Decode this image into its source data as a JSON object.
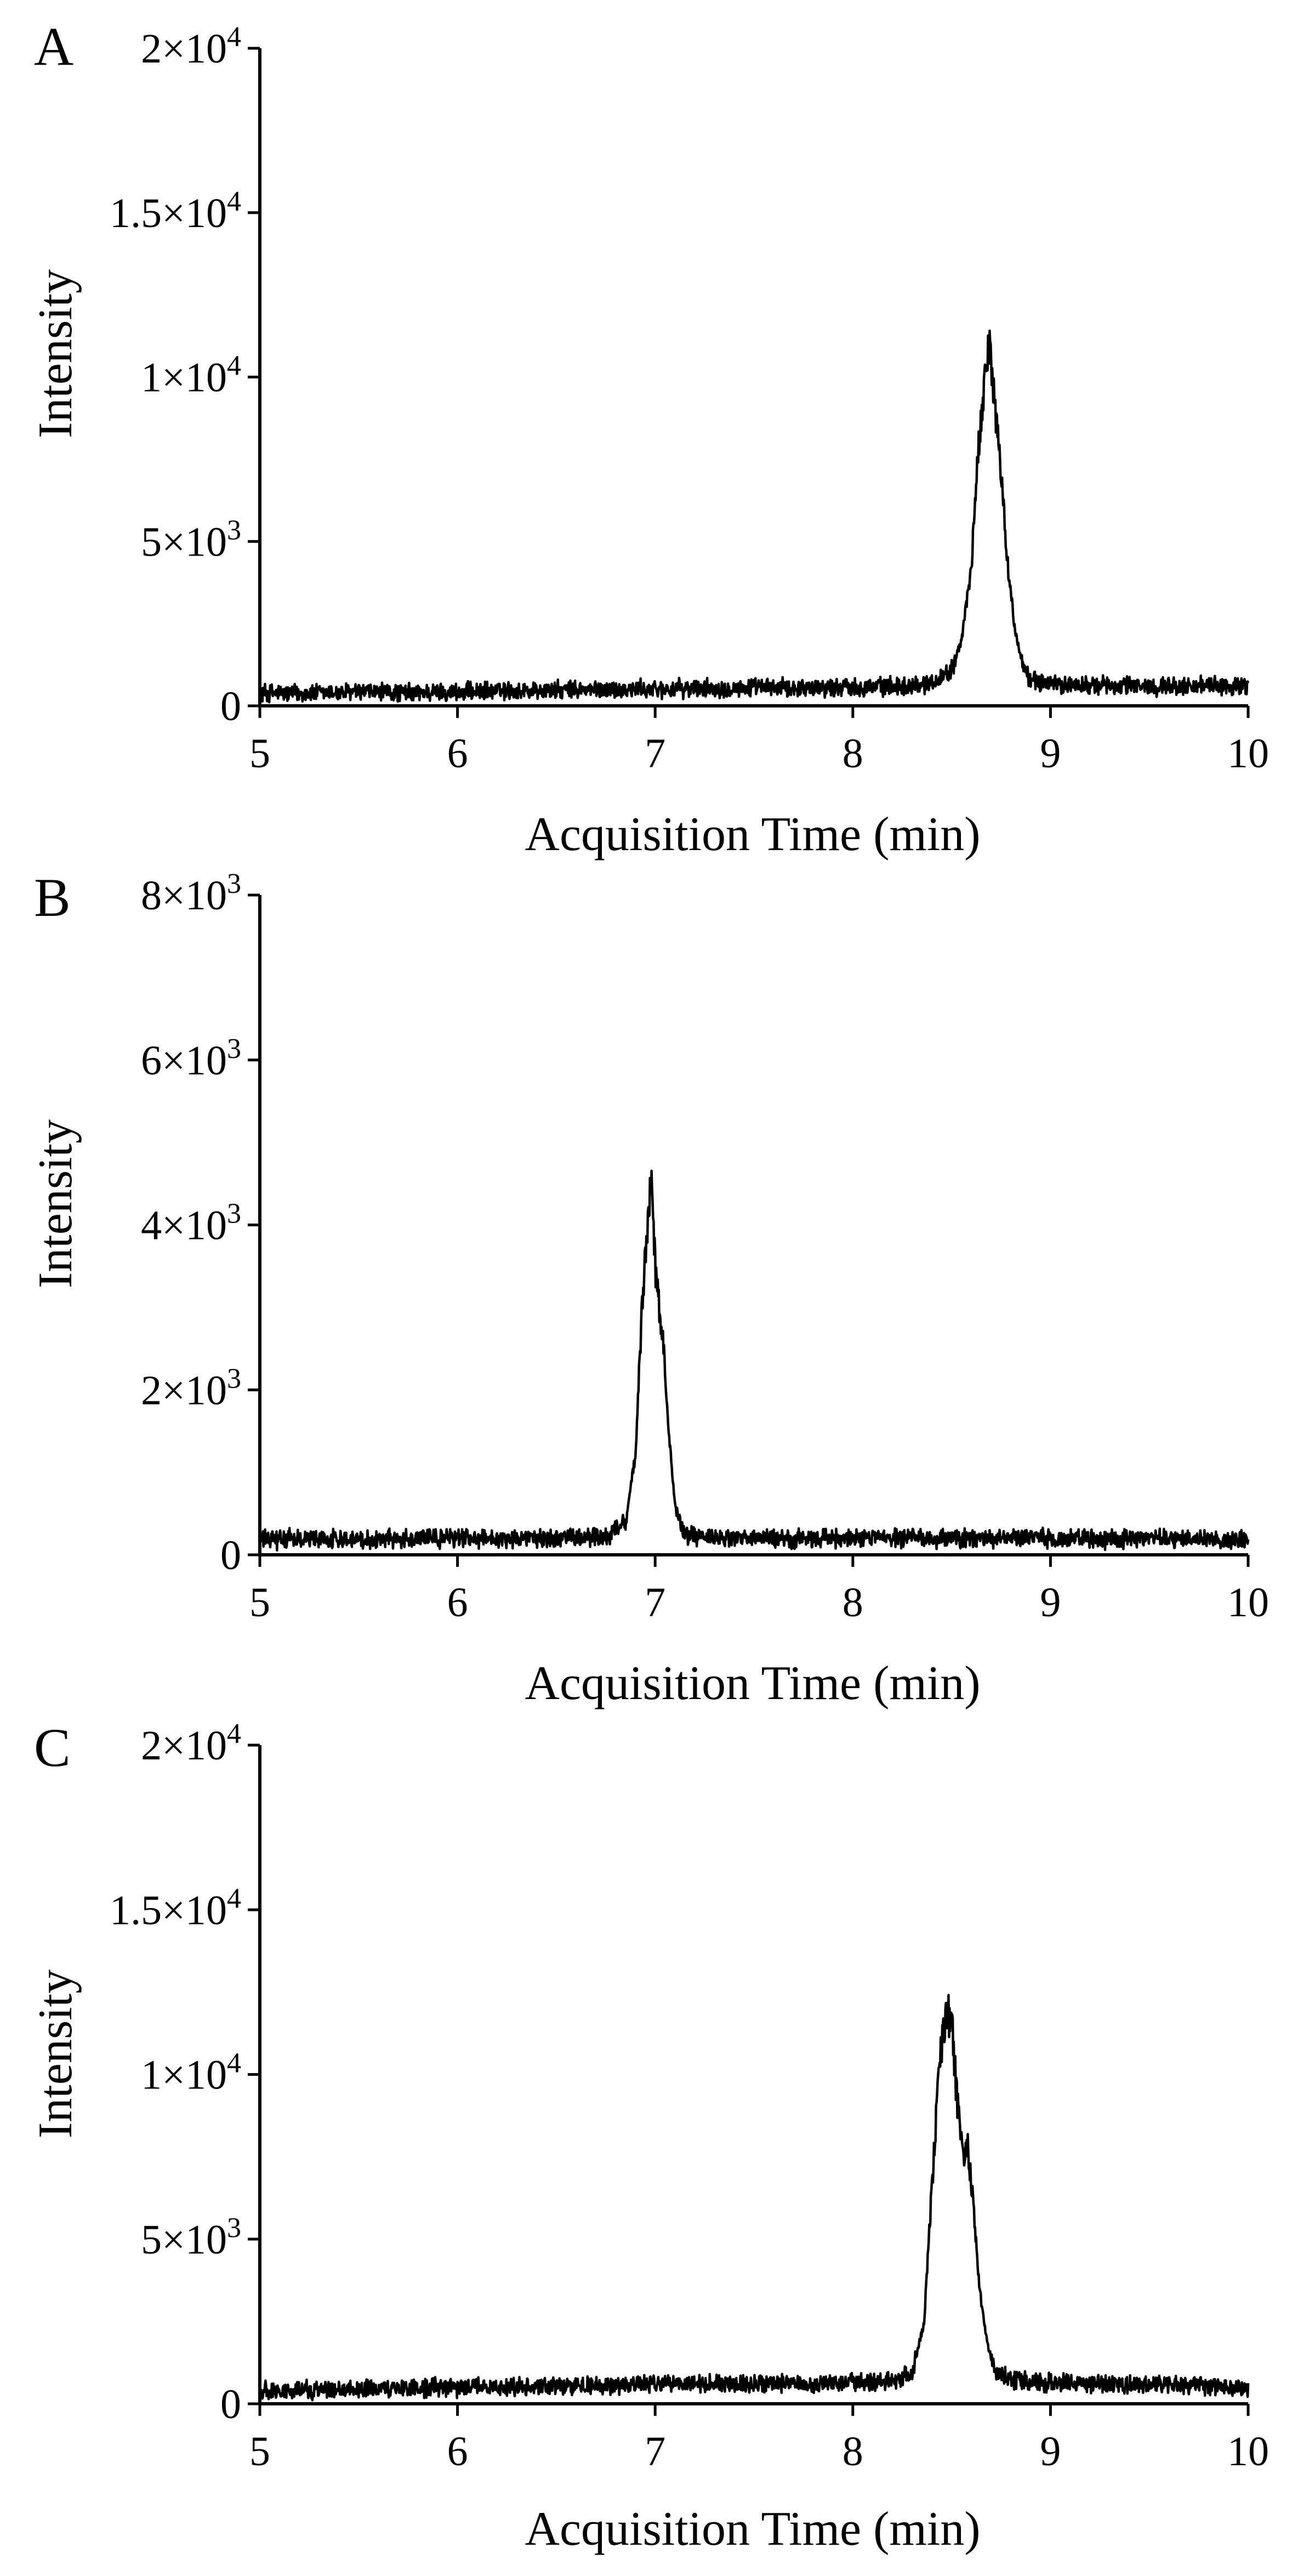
{
  "chart_data": [
    {
      "type": "line",
      "panel_label": "A",
      "xlabel": "Acquisition Time (min)",
      "ylabel": "Intensity",
      "xlim": [
        5,
        10
      ],
      "ylim": [
        0,
        20000
      ],
      "x_ticks": [
        5,
        6,
        7,
        8,
        9,
        10
      ],
      "x_tick_labels": [
        "5",
        "6",
        "7",
        "8",
        "9",
        "10"
      ],
      "y_ticks": [
        0,
        5000,
        10000,
        15000,
        20000
      ],
      "y_tick_labels": [
        {
          "mantissa": "0",
          "exponent": ""
        },
        {
          "mantissa": "5×10",
          "exponent": "3"
        },
        {
          "mantissa": "1×10",
          "exponent": "4"
        },
        {
          "mantissa": "1.5×10",
          "exponent": "4"
        },
        {
          "mantissa": "2×10",
          "exponent": "4"
        }
      ],
      "grid": false,
      "series": [
        {
          "x": [
            5.0,
            5.25,
            5.5,
            5.75,
            6.0,
            6.25,
            6.5,
            6.75,
            7.0,
            7.25,
            7.5,
            7.75,
            8.0,
            8.25,
            8.4,
            8.5,
            8.55,
            8.6,
            8.63,
            8.66,
            8.69,
            8.72,
            8.75,
            8.78,
            8.82,
            8.86,
            8.9,
            9.0,
            9.25,
            9.5,
            9.75,
            10.0
          ],
          "y": [
            400,
            380,
            420,
            400,
            420,
            450,
            470,
            490,
            510,
            530,
            550,
            560,
            580,
            600,
            700,
            1100,
            2000,
            4200,
            7500,
            9500,
            11000,
            9000,
            7200,
            4500,
            2300,
            1200,
            800,
            650,
            620,
            600,
            600,
            600
          ]
        }
      ]
    },
    {
      "type": "line",
      "panel_label": "B",
      "xlabel": "Acquisition Time (min)",
      "ylabel": "Intensity",
      "xlim": [
        5,
        10
      ],
      "ylim": [
        0,
        8000
      ],
      "x_ticks": [
        5,
        6,
        7,
        8,
        9,
        10
      ],
      "x_tick_labels": [
        "5",
        "6",
        "7",
        "8",
        "9",
        "10"
      ],
      "y_ticks": [
        0,
        2000,
        4000,
        6000,
        8000
      ],
      "y_tick_labels": [
        {
          "mantissa": "0",
          "exponent": ""
        },
        {
          "mantissa": "2×10",
          "exponent": "3"
        },
        {
          "mantissa": "4×10",
          "exponent": "3"
        },
        {
          "mantissa": "6×10",
          "exponent": "3"
        },
        {
          "mantissa": "8×10",
          "exponent": "3"
        }
      ],
      "grid": false,
      "series": [
        {
          "x": [
            5.0,
            5.25,
            5.5,
            5.75,
            6.0,
            6.25,
            6.5,
            6.75,
            6.85,
            6.9,
            6.93,
            6.96,
            6.98,
            7.0,
            7.02,
            7.04,
            7.07,
            7.1,
            7.15,
            7.25,
            7.5,
            7.75,
            8.0,
            8.25,
            8.5,
            8.75,
            9.0,
            9.25,
            9.5,
            9.75,
            10.0
          ],
          "y": [
            180,
            200,
            190,
            200,
            210,
            200,
            200,
            220,
            400,
            1200,
            2800,
            4000,
            4600,
            3500,
            3000,
            2600,
            1500,
            600,
            250,
            200,
            200,
            190,
            200,
            200,
            190,
            200,
            200,
            190,
            200,
            190,
            180
          ]
        }
      ]
    },
    {
      "type": "line",
      "panel_label": "C",
      "xlabel": "Acquisition Time (min)",
      "ylabel": "Intensity",
      "xlim": [
        5,
        10
      ],
      "ylim": [
        0,
        20000
      ],
      "x_ticks": [
        5,
        6,
        7,
        8,
        9,
        10
      ],
      "x_tick_labels": [
        "5",
        "6",
        "7",
        "8",
        "9",
        "10"
      ],
      "y_ticks": [
        0,
        5000,
        10000,
        15000,
        20000
      ],
      "y_tick_labels": [
        {
          "mantissa": "0",
          "exponent": ""
        },
        {
          "mantissa": "5×10",
          "exponent": "3"
        },
        {
          "mantissa": "1×10",
          "exponent": "4"
        },
        {
          "mantissa": "1.5×10",
          "exponent": "4"
        },
        {
          "mantissa": "2×10",
          "exponent": "4"
        }
      ],
      "grid": false,
      "series": [
        {
          "x": [
            5.0,
            5.25,
            5.5,
            5.75,
            6.0,
            6.25,
            6.5,
            6.75,
            7.0,
            7.25,
            7.5,
            7.75,
            8.0,
            8.2,
            8.3,
            8.36,
            8.4,
            8.44,
            8.48,
            8.5,
            8.53,
            8.56,
            8.58,
            8.61,
            8.64,
            8.68,
            8.72,
            8.8,
            9.0,
            9.25,
            9.5,
            9.75,
            10.0
          ],
          "y": [
            400,
            420,
            450,
            480,
            500,
            520,
            540,
            560,
            580,
            600,
            600,
            620,
            640,
            680,
            900,
            2500,
            6500,
            10500,
            12000,
            11500,
            9000,
            7500,
            8000,
            6000,
            3500,
            1800,
            1000,
            700,
            650,
            600,
            600,
            550,
            500
          ]
        }
      ]
    }
  ]
}
